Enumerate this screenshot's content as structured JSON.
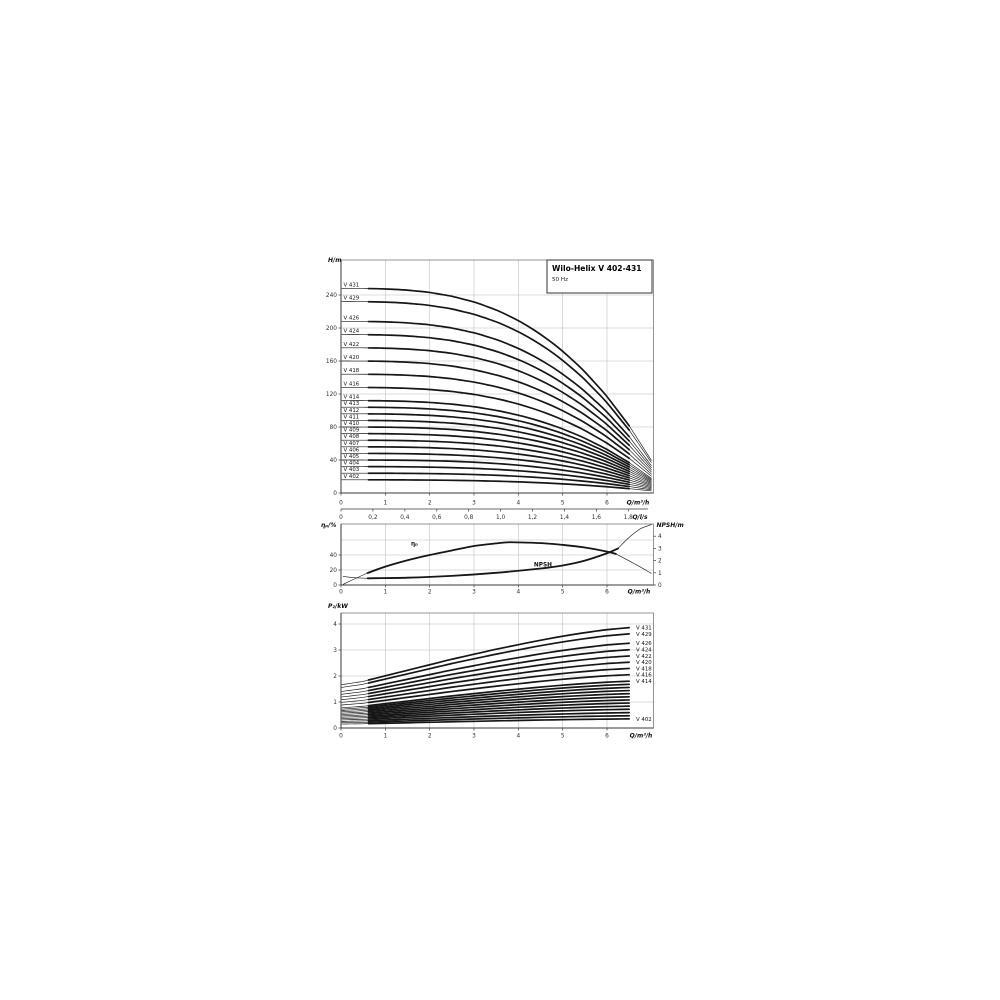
{
  "page": {
    "background": "#ffffff"
  },
  "title_block": {
    "title": "Wilo-Helix V 402-431",
    "subtitle": "50 Hz"
  },
  "colors": {
    "curve": "#161616",
    "grid": "#bdbdbd",
    "frame": "#7a7a7a",
    "axis": "#3a3a3a",
    "tick_text": "#2e2e2e",
    "label_text": "#111111",
    "background": "#ffffff"
  },
  "chart_data": [
    {
      "id": "head",
      "type": "line",
      "ylabel": "H/m",
      "xlabel": "Q/m³/h",
      "xlabel_secondary": "Q/l/s",
      "xticks": [
        0,
        1,
        2,
        3,
        4,
        5,
        6
      ],
      "yticks": [
        0,
        40,
        80,
        120,
        160,
        200,
        240
      ],
      "xticks_secondary_labels": [
        "0",
        "0,2",
        "0,4",
        "0,6",
        "0,8",
        "1,0",
        "1,2",
        "1,4",
        "1,6",
        "1,8"
      ],
      "xticks_secondary_values": [
        0,
        0.2,
        0.4,
        0.6,
        0.8,
        1.0,
        1.2,
        1.4,
        1.6,
        1.8
      ],
      "xlim": [
        0,
        7.05
      ],
      "ylim": [
        0,
        282
      ],
      "grid": true,
      "q_thin_lead": [
        0.02,
        0.65
      ],
      "q_thick": [
        0.62,
        6.5
      ],
      "q_thin_tail": [
        6.5,
        7.0
      ],
      "profile_q": [
        0,
        0.5,
        1,
        1.5,
        2,
        2.5,
        3,
        3.5,
        4,
        4.5,
        5,
        5.5,
        6,
        6.5,
        7
      ],
      "profile_head_fraction": [
        1.0,
        0.9997,
        0.9976,
        0.9917,
        0.9804,
        0.9617,
        0.9339,
        0.8951,
        0.8434,
        0.7771,
        0.6943,
        0.5932,
        0.4719,
        0.3287,
        0.16
      ],
      "series": [
        {
          "label": "V 431",
          "shutoff_head_m": 248
        },
        {
          "label": "V 429",
          "shutoff_head_m": 232
        },
        {
          "label": "V 426",
          "shutoff_head_m": 208
        },
        {
          "label": "V 424",
          "shutoff_head_m": 192
        },
        {
          "label": "V 422",
          "shutoff_head_m": 176
        },
        {
          "label": "V 420",
          "shutoff_head_m": 160
        },
        {
          "label": "V 418",
          "shutoff_head_m": 144
        },
        {
          "label": "V 416",
          "shutoff_head_m": 128
        },
        {
          "label": "V 414",
          "shutoff_head_m": 112
        },
        {
          "label": "V 413",
          "shutoff_head_m": 104
        },
        {
          "label": "V 412",
          "shutoff_head_m": 96
        },
        {
          "label": "V 411",
          "shutoff_head_m": 88
        },
        {
          "label": "V 410",
          "shutoff_head_m": 80
        },
        {
          "label": "V 409",
          "shutoff_head_m": 72
        },
        {
          "label": "V 408",
          "shutoff_head_m": 64
        },
        {
          "label": "V 407",
          "shutoff_head_m": 56
        },
        {
          "label": "V 406",
          "shutoff_head_m": 48
        },
        {
          "label": "V 405",
          "shutoff_head_m": 40
        },
        {
          "label": "V 404",
          "shutoff_head_m": 32
        },
        {
          "label": "V 403",
          "shutoff_head_m": 24
        },
        {
          "label": "V 402",
          "shutoff_head_m": 16
        }
      ]
    },
    {
      "id": "efficiency_npsh",
      "type": "line",
      "ylabel_left": "ηₚ/%",
      "ylabel_right": "NPSH/m",
      "xlabel": "Q/m³/h",
      "xticks": [
        0,
        1,
        2,
        3,
        4,
        5,
        6
      ],
      "yticks_left": [
        0,
        20,
        40
      ],
      "yticks_right": [
        0,
        1,
        2,
        3,
        4
      ],
      "xlim": [
        0,
        7.05
      ],
      "ylim_left": [
        0,
        81
      ],
      "ylim_right": [
        0,
        5
      ],
      "grid": true,
      "series": [
        {
          "label": "ηₚ",
          "axis": "left",
          "thick_range": [
            0.6,
            6.2
          ],
          "points": [
            [
              0.05,
              1
            ],
            [
              0.3,
              8
            ],
            [
              0.6,
              16
            ],
            [
              1,
              24.5
            ],
            [
              1.5,
              33
            ],
            [
              2,
              40
            ],
            [
              2.5,
              46
            ],
            [
              3,
              52
            ],
            [
              3.5,
              55.5
            ],
            [
              3.8,
              57
            ],
            [
              4.2,
              56.5
            ],
            [
              4.6,
              55.5
            ],
            [
              5,
              53.5
            ],
            [
              5.5,
              50
            ],
            [
              6,
              44.5
            ],
            [
              6.2,
              41.5
            ],
            [
              6.6,
              29
            ],
            [
              7,
              15.5
            ]
          ]
        },
        {
          "label": "NPSH",
          "axis": "right",
          "thick_range": [
            0.6,
            6.25
          ],
          "points": [
            [
              0.05,
              0.7
            ],
            [
              0.3,
              0.6
            ],
            [
              0.6,
              0.55
            ],
            [
              1.5,
              0.6
            ],
            [
              2.5,
              0.75
            ],
            [
              3.5,
              1.0
            ],
            [
              4.5,
              1.35
            ],
            [
              5,
              1.6
            ],
            [
              5.5,
              2.0
            ],
            [
              6,
              2.6
            ],
            [
              6.25,
              3.0
            ],
            [
              6.5,
              3.9
            ],
            [
              6.75,
              4.6
            ],
            [
              7,
              4.95
            ]
          ]
        }
      ],
      "curve_labels": [
        {
          "text": "ηₚ",
          "q": 1.58,
          "value": 53,
          "axis": "left"
        },
        {
          "text": "NPSH",
          "q": 4.35,
          "value": 1.52,
          "axis": "right"
        }
      ]
    },
    {
      "id": "power",
      "type": "line",
      "ylabel": "P₂/kW",
      "xlabel": "Q/m³/h",
      "xticks": [
        0,
        1,
        2,
        3,
        4,
        5,
        6
      ],
      "yticks": [
        0,
        1,
        2,
        3,
        4
      ],
      "xlim": [
        0,
        7.05
      ],
      "ylim": [
        0,
        4.42
      ],
      "grid": true,
      "q_thin_lead": [
        0.02,
        0.65
      ],
      "q_thick": [
        0.62,
        6.5
      ],
      "profile_q": [
        0,
        0.5,
        1,
        1.5,
        2,
        2.5,
        3,
        3.5,
        4,
        4.5,
        5,
        5.5,
        6,
        6.5
      ],
      "profile_power_fraction": [
        0.43,
        0.465,
        0.52,
        0.575,
        0.63,
        0.685,
        0.735,
        0.785,
        0.83,
        0.875,
        0.915,
        0.95,
        0.98,
        1.0
      ],
      "series": [
        {
          "label": "V 431",
          "p2_end_kw": 3.86,
          "labeled": true
        },
        {
          "label": "V 429",
          "p2_end_kw": 3.62,
          "labeled": true
        },
        {
          "label": "V 426",
          "p2_end_kw": 3.26,
          "labeled": true
        },
        {
          "label": "V 424",
          "p2_end_kw": 3.01,
          "labeled": true
        },
        {
          "label": "V 422",
          "p2_end_kw": 2.77,
          "labeled": true
        },
        {
          "label": "V 420",
          "p2_end_kw": 2.53,
          "labeled": true
        },
        {
          "label": "V 418",
          "p2_end_kw": 2.29,
          "labeled": true
        },
        {
          "label": "V 416",
          "p2_end_kw": 2.05,
          "labeled": true
        },
        {
          "label": "V 414",
          "p2_end_kw": 1.8,
          "labeled": true
        },
        {
          "label": "V 413",
          "p2_end_kw": 1.68,
          "labeled": false
        },
        {
          "label": "V 412",
          "p2_end_kw": 1.56,
          "labeled": false
        },
        {
          "label": "V 411",
          "p2_end_kw": 1.44,
          "labeled": false
        },
        {
          "label": "V 410",
          "p2_end_kw": 1.32,
          "labeled": false
        },
        {
          "label": "V 409",
          "p2_end_kw": 1.2,
          "labeled": false
        },
        {
          "label": "V 408",
          "p2_end_kw": 1.08,
          "labeled": false
        },
        {
          "label": "V 407",
          "p2_end_kw": 0.96,
          "labeled": false
        },
        {
          "label": "V 406",
          "p2_end_kw": 0.84,
          "labeled": false
        },
        {
          "label": "V 405",
          "p2_end_kw": 0.72,
          "labeled": false
        },
        {
          "label": "V 404",
          "p2_end_kw": 0.59,
          "labeled": false
        },
        {
          "label": "V 403",
          "p2_end_kw": 0.47,
          "labeled": false
        },
        {
          "label": "V 402",
          "p2_end_kw": 0.35,
          "labeled": true
        }
      ]
    }
  ]
}
